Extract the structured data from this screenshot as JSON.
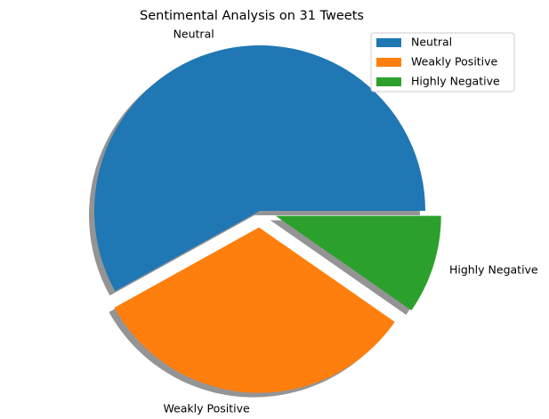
{
  "chart_data": {
    "type": "pie",
    "title": "Sentimental Analysis on 31 Tweets",
    "slices": [
      {
        "label": "Neutral",
        "value": 18,
        "color": "#1f77b4",
        "explode": 0
      },
      {
        "label": "Weakly Positive",
        "value": 10,
        "color": "#ff7f0e",
        "explode": 0.1
      },
      {
        "label": "Highly Negative",
        "value": 3,
        "color": "#2ca02c",
        "explode": 0.1
      }
    ],
    "start_angle": 0,
    "direction": "counterclockwise",
    "shadow": true,
    "legend": {
      "placement": "upper-right",
      "entries": [
        "Neutral",
        "Weakly Positive",
        "Highly Negative"
      ]
    }
  }
}
